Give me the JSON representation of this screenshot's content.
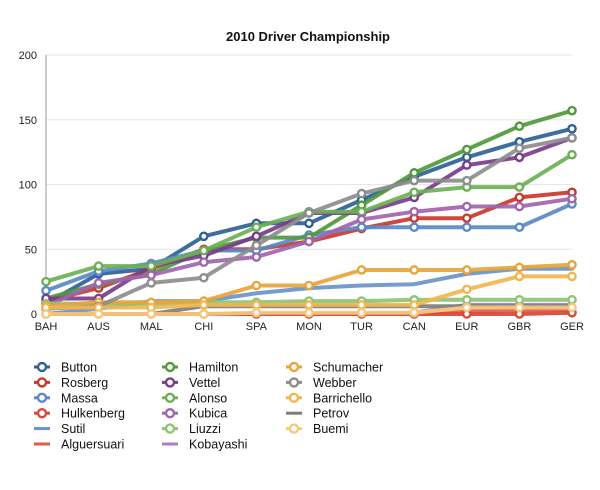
{
  "chart_data": {
    "type": "line",
    "title": "2010 Driver Championship",
    "categories": [
      "BAH",
      "AUS",
      "MAL",
      "CHI",
      "SPA",
      "MON",
      "TUR",
      "CAN",
      "EUR",
      "GBR",
      "GER"
    ],
    "ylim": [
      0,
      200
    ],
    "yticks": [
      0,
      50,
      100,
      150,
      200
    ],
    "grid": "horizontal",
    "legend_position": "bottom",
    "series": [
      {
        "name": "Button",
        "color": "#2f6196",
        "markers": true,
        "values": [
          8,
          31,
          35,
          60,
          70,
          70,
          88,
          106,
          121,
          133,
          143
        ]
      },
      {
        "name": "Rosberg",
        "color": "#c93a2e",
        "markers": true,
        "values": [
          10,
          20,
          35,
          50,
          50,
          56,
          66,
          74,
          74,
          90,
          94
        ]
      },
      {
        "name": "Massa",
        "color": "#5a8ac6",
        "markers": true,
        "values": [
          18,
          33,
          39,
          49,
          49,
          61,
          67,
          67,
          67,
          67,
          85
        ]
      },
      {
        "name": "Hulkenberg",
        "color": "#d94a3d",
        "markers": true,
        "values": [
          0,
          0,
          0,
          0,
          0,
          0,
          0,
          0,
          0,
          0,
          1
        ]
      },
      {
        "name": "Sutil",
        "color": "#6a94c9",
        "markers": false,
        "values": [
          0,
          4,
          10,
          10,
          16,
          20,
          22,
          23,
          31,
          35,
          35
        ]
      },
      {
        "name": "Alguersuari",
        "color": "#e25c4e",
        "markers": false,
        "values": [
          0,
          0,
          0,
          0,
          0,
          0,
          0,
          0,
          2,
          3,
          3
        ]
      },
      {
        "name": "Hamilton",
        "color": "#4f9a3c",
        "markers": true,
        "values": [
          12,
          23,
          31,
          49,
          59,
          59,
          84,
          109,
          127,
          145,
          157
        ]
      },
      {
        "name": "Vettel",
        "color": "#7a3d8c",
        "markers": true,
        "values": [
          12,
          12,
          37,
          45,
          60,
          78,
          78,
          90,
          115,
          121,
          136
        ]
      },
      {
        "name": "Alonso",
        "color": "#6cb055",
        "markers": true,
        "values": [
          25,
          37,
          37,
          49,
          67,
          79,
          79,
          94,
          98,
          98,
          123
        ]
      },
      {
        "name": "Kubica",
        "color": "#a065ae",
        "markers": true,
        "values": [
          6,
          24,
          30,
          40,
          44,
          56,
          73,
          79,
          83,
          83,
          89
        ]
      },
      {
        "name": "Liuzzi",
        "color": "#8cc474",
        "markers": true,
        "values": [
          8,
          8,
          8,
          9,
          9,
          10,
          10,
          11,
          11,
          11,
          11
        ]
      },
      {
        "name": "Kobayashi",
        "color": "#b27cbf",
        "markers": false,
        "values": [
          0,
          0,
          0,
          0,
          0,
          0,
          0,
          1,
          7,
          7,
          7
        ]
      },
      {
        "name": "Schumacher",
        "color": "#e8a53a",
        "markers": true,
        "values": [
          6,
          9,
          9,
          10,
          22,
          22,
          34,
          34,
          34,
          36,
          38
        ]
      },
      {
        "name": "Webber",
        "color": "#8d8d8d",
        "markers": true,
        "values": [
          4,
          6,
          24,
          28,
          53,
          78,
          93,
          103,
          103,
          128,
          136
        ]
      },
      {
        "name": "Barrichello",
        "color": "#f0b650",
        "markers": true,
        "values": [
          5,
          5,
          5,
          7,
          7,
          7,
          7,
          7,
          19,
          29,
          29
        ]
      },
      {
        "name": "Petrov",
        "color": "#7e7e7e",
        "markers": false,
        "values": [
          0,
          0,
          0,
          6,
          6,
          6,
          6,
          6,
          6,
          6,
          6
        ]
      },
      {
        "name": "Buemi",
        "color": "#f4c97d",
        "markers": true,
        "values": [
          0,
          0,
          0,
          0,
          1,
          1,
          1,
          1,
          5,
          5,
          5
        ]
      }
    ]
  }
}
